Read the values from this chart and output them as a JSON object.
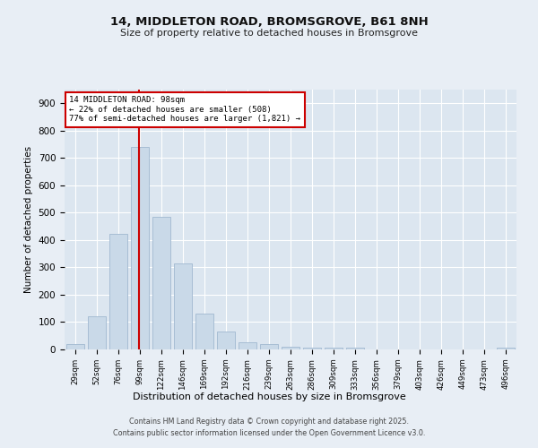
{
  "title_line1": "14, MIDDLETON ROAD, BROMSGROVE, B61 8NH",
  "title_line2": "Size of property relative to detached houses in Bromsgrove",
  "xlabel": "Distribution of detached houses by size in Bromsgrove",
  "ylabel": "Number of detached properties",
  "categories": [
    "29sqm",
    "52sqm",
    "76sqm",
    "99sqm",
    "122sqm",
    "146sqm",
    "169sqm",
    "192sqm",
    "216sqm",
    "239sqm",
    "263sqm",
    "286sqm",
    "309sqm",
    "333sqm",
    "356sqm",
    "379sqm",
    "403sqm",
    "426sqm",
    "449sqm",
    "473sqm",
    "496sqm"
  ],
  "values": [
    20,
    122,
    422,
    740,
    484,
    316,
    130,
    67,
    25,
    20,
    10,
    7,
    5,
    7,
    0,
    0,
    0,
    0,
    0,
    0,
    7
  ],
  "bar_color": "#c9d9e8",
  "bar_edge_color": "#a0b8d0",
  "property_line_label": "14 MIDDLETON ROAD: 98sqm",
  "annotation_line2": "← 22% of detached houses are smaller (508)",
  "annotation_line3": "77% of semi-detached houses are larger (1,821) →",
  "annotation_box_color": "#cc0000",
  "vline_color": "#cc0000",
  "ylim": [
    0,
    950
  ],
  "yticks": [
    0,
    100,
    200,
    300,
    400,
    500,
    600,
    700,
    800,
    900
  ],
  "footer_line1": "Contains HM Land Registry data © Crown copyright and database right 2025.",
  "footer_line2": "Contains public sector information licensed under the Open Government Licence v3.0.",
  "bg_color": "#e8eef5",
  "plot_bg_color": "#dce6f0"
}
